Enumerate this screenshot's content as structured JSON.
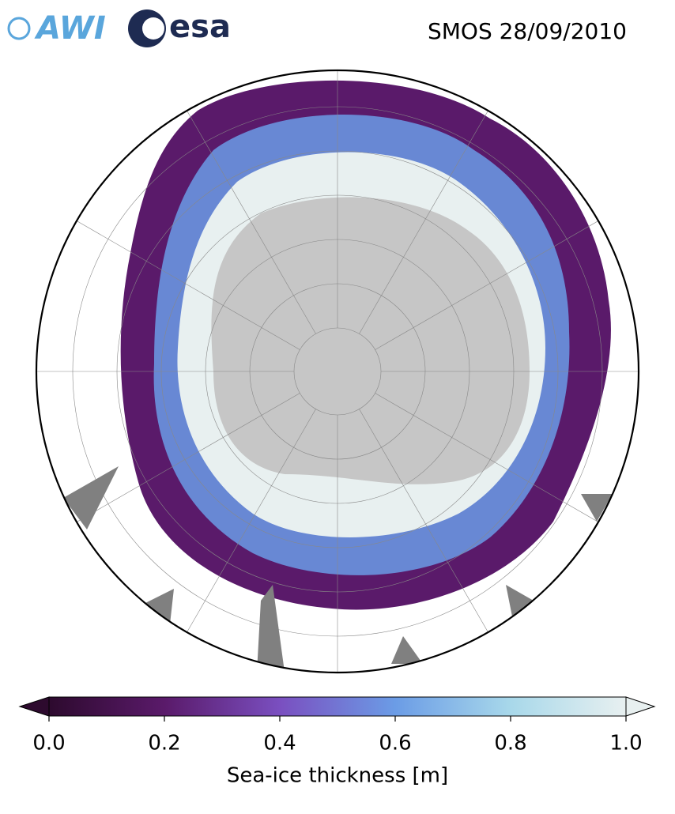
{
  "logos": [
    "AWI",
    "esa"
  ],
  "title": "SMOS 28/09/2010",
  "colorbar": {
    "label": "Sea-ice thickness [m]",
    "lim": [
      0,
      1
    ],
    "ticks": [
      {
        "value": 0,
        "label": "0.0"
      },
      0.2,
      0.4,
      0.6,
      0.8,
      {
        "value": 1,
        "label": "1.0"
      }
    ],
    "colors": [
      "#2d0a2e",
      "#5a1a6a",
      "#7a4fc0",
      "#6b9ce6",
      "#a8d8ea",
      "#e8f0f0"
    ]
  }
}
